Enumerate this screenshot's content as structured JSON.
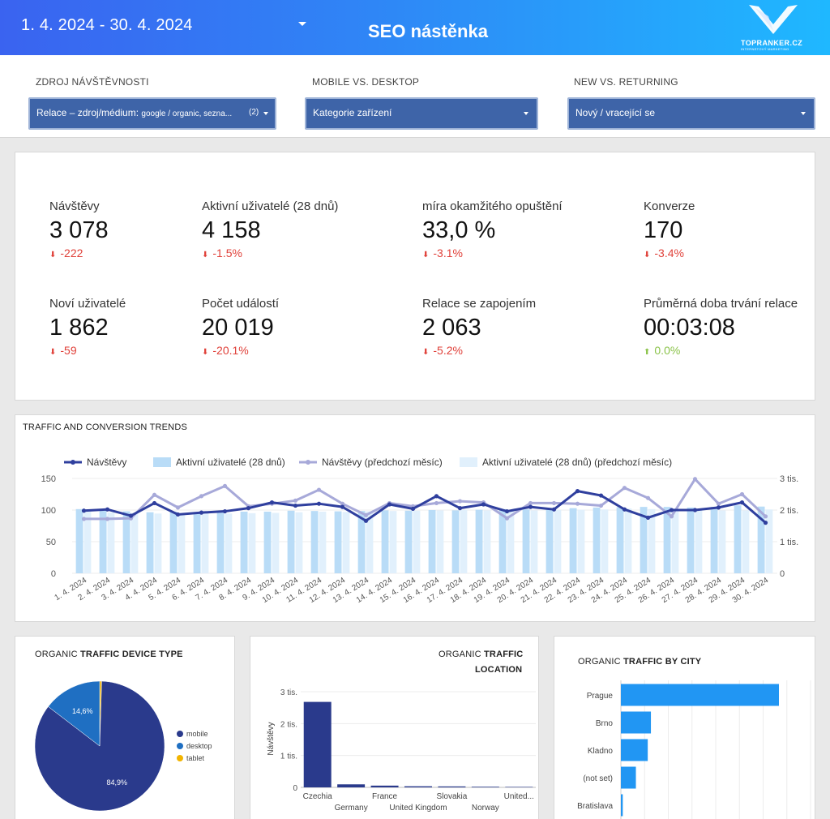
{
  "header": {
    "date_range": "1. 4. 2024 - 30. 4. 2024",
    "title": "SEO nástěnka",
    "logo_text": "TOPRANKER.CZ",
    "logo_subtext": "INTERNETOVÝ MARKETING",
    "accent": "#2f86f6"
  },
  "filters": [
    {
      "label": "ZDROJ NÁVŠTĚVNOSTI",
      "value_main": "Relace – zdroj/médium:",
      "value_detail": "google / organic, sezna...",
      "count": "(2)"
    },
    {
      "label": "MOBILE VS. DESKTOP",
      "value_main": "Kategorie zařízení",
      "value_detail": "",
      "count": ""
    },
    {
      "label": "NEW VS. RETURNING",
      "value_main": "Nový / vracející se",
      "value_detail": "",
      "count": ""
    }
  ],
  "kpis": [
    {
      "label": "Návštěvy",
      "value": "3 078",
      "delta": "-222",
      "trend": "down"
    },
    {
      "label": "Aktivní uživatelé (28 dnů)",
      "value": "4 158",
      "delta": "-1.5%",
      "trend": "down"
    },
    {
      "label": "míra okamžitého opuštění",
      "value": "33,0 %",
      "delta": "-3.1%",
      "trend": "down"
    },
    {
      "label": "Konverze",
      "value": "170",
      "delta": "-3.4%",
      "trend": "down"
    },
    {
      "label": "Noví uživatelé",
      "value": "1 862",
      "delta": "-59",
      "trend": "down"
    },
    {
      "label": "Počet událostí",
      "value": "20 019",
      "delta": "-20.1%",
      "trend": "down"
    },
    {
      "label": "Relace se zapojením",
      "value": "2 063",
      "delta": "-5.2%",
      "trend": "down"
    },
    {
      "label": "Průměrná doba trvání relace",
      "value": "00:03:08",
      "delta": "0.0%",
      "trend": "up"
    }
  ],
  "trend_chart": {
    "title": "TRAFFIC AND CONVERSION TRENDS",
    "chart_data": {
      "type": "line",
      "legend": [
        {
          "name": "Návštěvy",
          "kind": "line",
          "color": "#2f3f9e"
        },
        {
          "name": "Aktivní uživatelé (28 dnů)",
          "kind": "bar",
          "color": "#b9dcf7"
        },
        {
          "name": "Návštěvy (předchozí měsíc)",
          "kind": "line",
          "color": "#a7a9d9"
        },
        {
          "name": "Aktivní uživatelé (28 dnů) (předchozí měsíc)",
          "kind": "bar",
          "color": "#e1f0fc"
        }
      ],
      "x": [
        "1. 4. 2024",
        "2. 4. 2024",
        "3. 4. 2024",
        "4. 4. 2024",
        "5. 4. 2024",
        "6. 4. 2024",
        "7. 4. 2024",
        "8. 4. 2024",
        "9. 4. 2024",
        "10. 4. 2024",
        "11. 4. 2024",
        "12. 4. 2024",
        "13. 4. 2024",
        "14. 4. 2024",
        "15. 4. 2024",
        "16. 4. 2024",
        "17. 4. 2024",
        "18. 4. 2024",
        "19. 4. 2024",
        "20. 4. 2024",
        "21. 4. 2024",
        "22. 4. 2024",
        "23. 4. 2024",
        "24. 4. 2024",
        "25. 4. 2024",
        "26. 4. 2024",
        "27. 4. 2024",
        "28. 4. 2024",
        "29. 4. 2024",
        "30. 4. 2024"
      ],
      "left_axis": {
        "ticks": [
          "0",
          "50",
          "100",
          "150"
        ],
        "range": [
          0,
          150
        ]
      },
      "right_axis": {
        "ticks": [
          "0",
          "1 tis.",
          "2 tis.",
          "3 tis."
        ],
        "range": [
          0,
          3000
        ]
      },
      "series": [
        {
          "name": "Návštěvy",
          "axis": "left",
          "values": [
            99,
            101,
            91,
            111,
            93,
            96,
            98,
            103,
            112,
            107,
            110,
            105,
            83,
            109,
            102,
            122,
            103,
            109,
            98,
            105,
            101,
            130,
            123,
            101,
            88,
            100,
            100,
            104,
            112,
            80
          ]
        },
        {
          "name": "Návštěvy (předchozí měsíc)",
          "axis": "left",
          "values": [
            86,
            86,
            87,
            124,
            104,
            122,
            138,
            106,
            110,
            115,
            132,
            110,
            92,
            111,
            106,
            111,
            114,
            112,
            87,
            111,
            111,
            110,
            107,
            135,
            119,
            90,
            149,
            110,
            125,
            90
          ]
        },
        {
          "name": "Aktivní uživatelé (28 dnů)",
          "axis": "right",
          "values": [
            2030,
            2000,
            1960,
            1930,
            1950,
            1940,
            1970,
            1950,
            1950,
            1980,
            1970,
            1960,
            1970,
            1990,
            1980,
            2000,
            1990,
            2010,
            2030,
            2020,
            2040,
            2060,
            2080,
            2090,
            2100,
            2100,
            2080,
            2100,
            2150,
            2110
          ]
        },
        {
          "name": "Aktivní uživatelé (28 dnů) (předchozí měsíc)",
          "axis": "right",
          "values": [
            1950,
            1920,
            1910,
            1890,
            1880,
            1900,
            1890,
            1900,
            1910,
            1930,
            1950,
            1940,
            1960,
            1970,
            1980,
            1990,
            2000,
            1990,
            1970,
            1990,
            2000,
            2010,
            2020,
            2050,
            2030,
            2050,
            2020,
            1990,
            1990,
            2020
          ]
        }
      ]
    }
  },
  "device_chart": {
    "title_prefix": "ORGANIC ",
    "title_bold": "TRAFFIC DEVICE TYPE",
    "chart_data": {
      "type": "pie",
      "slices": [
        {
          "name": "mobile",
          "value": 84.9,
          "label": "84,9%",
          "color": "#2a3a8c"
        },
        {
          "name": "desktop",
          "value": 14.6,
          "label": "14,6%",
          "color": "#1f6fc2"
        },
        {
          "name": "tablet",
          "value": 0.5,
          "label": "",
          "color": "#f2b400"
        }
      ]
    }
  },
  "location_chart": {
    "title_prefix": "ORGANIC ",
    "title_bold": "TRAFFIC",
    "title_line2": "LOCATION",
    "chart_data": {
      "type": "bar",
      "ylabel": "Návštěvy",
      "ticks": [
        "0",
        "1 tis.",
        "2 tis.",
        "3 tis."
      ],
      "ylim": [
        0,
        3000
      ],
      "categories": [
        "Czechia",
        "Germany",
        "France",
        "United Kingdom",
        "Slovakia",
        "Norway",
        "United..."
      ],
      "values": [
        2680,
        95,
        55,
        35,
        30,
        20,
        15
      ],
      "color": "#2a3a8c"
    }
  },
  "city_chart": {
    "title_prefix": "ORGANIC ",
    "title_bold": "TRAFFIC BY CITY",
    "chart_data": {
      "type": "bar",
      "categories": [
        "Prague",
        "Brno",
        "Kladno",
        "(not set)",
        "Bratislava"
      ],
      "values": [
        1000,
        190,
        170,
        95,
        12
      ],
      "xlim": [
        0,
        1200
      ],
      "color": "#2196f3"
    }
  }
}
